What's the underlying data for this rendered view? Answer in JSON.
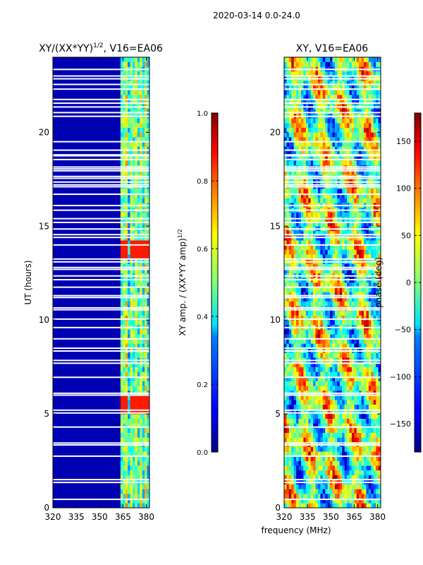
{
  "figure": {
    "suptitle": "2020-03-14 0.0-24.0",
    "xlabel_shared": "frequency (MHz)"
  },
  "chart_data": [
    {
      "type": "heatmap",
      "title_main": "XY/(XX*YY)",
      "title_sup": "1/2",
      "title_suffix": ", V16=EA06",
      "xlabel": "",
      "ylabel": "UT (hours)",
      "xlim": [
        320,
        382
      ],
      "ylim": [
        0,
        24
      ],
      "xticks": [
        320,
        335,
        350,
        365,
        380
      ],
      "yticks": [
        0,
        5,
        10,
        15,
        20
      ],
      "colormap": "jet",
      "colorbar": {
        "label_main": "XY amp. / (XX*YY amp)",
        "label_sup": "1/2",
        "range": [
          0.0,
          1.0
        ],
        "ticks": [
          "0.0",
          "0.2",
          "0.4",
          "0.6",
          "0.8",
          "1.0"
        ],
        "tick_values": [
          0.0,
          0.2,
          0.4,
          0.6,
          0.8,
          1.0
        ]
      },
      "description_values": {
        "background_level": 0.05,
        "band_frequencies_mhz": [
          365,
          367.5,
          371,
          374,
          377,
          380
        ],
        "band_level_typical": 0.45,
        "band_level_peaks_hours": [
          5.5,
          13.7
        ],
        "band_level_peak": 0.85
      }
    },
    {
      "type": "heatmap",
      "title": "XY, V16=EA06",
      "xlabel": "frequency (MHz)",
      "ylabel": "",
      "xlim": [
        320,
        382
      ],
      "ylim": [
        0,
        24
      ],
      "xticks": [
        320,
        335,
        350,
        365,
        380
      ],
      "yticks": [
        0,
        5,
        10,
        15,
        20
      ],
      "colormap": "jet",
      "colorbar": {
        "label": "phase (deg)",
        "range": [
          -180,
          180
        ],
        "ticks": [
          "−150",
          "−100",
          "−50",
          "0",
          "50",
          "100",
          "150"
        ],
        "tick_values": [
          -150,
          -100,
          -50,
          0,
          50,
          100,
          150
        ]
      }
    }
  ],
  "flagged_rows_hours": [
    0.45,
    1.35,
    1.5,
    2.75,
    3.35,
    3.45,
    4.3,
    5.05,
    5.2,
    6.0,
    6.1,
    6.95,
    7.7,
    7.85,
    8.35,
    8.5,
    9.0,
    9.6,
    10.05,
    10.55,
    10.65,
    11.2,
    11.3,
    11.75,
    12.15,
    12.35,
    12.7,
    12.8,
    13.1,
    13.25,
    14.0,
    14.4,
    14.55,
    14.85,
    15.2,
    15.4,
    15.85,
    16.1,
    16.7,
    17.1,
    17.2,
    17.35,
    17.55,
    17.65,
    17.95,
    18.05,
    18.15,
    18.55,
    18.75,
    18.8,
    19.05,
    19.5,
    20.85,
    21.05,
    21.35,
    21.55,
    21.75,
    22.3,
    22.55,
    22.85,
    23.0,
    23.35
  ]
}
